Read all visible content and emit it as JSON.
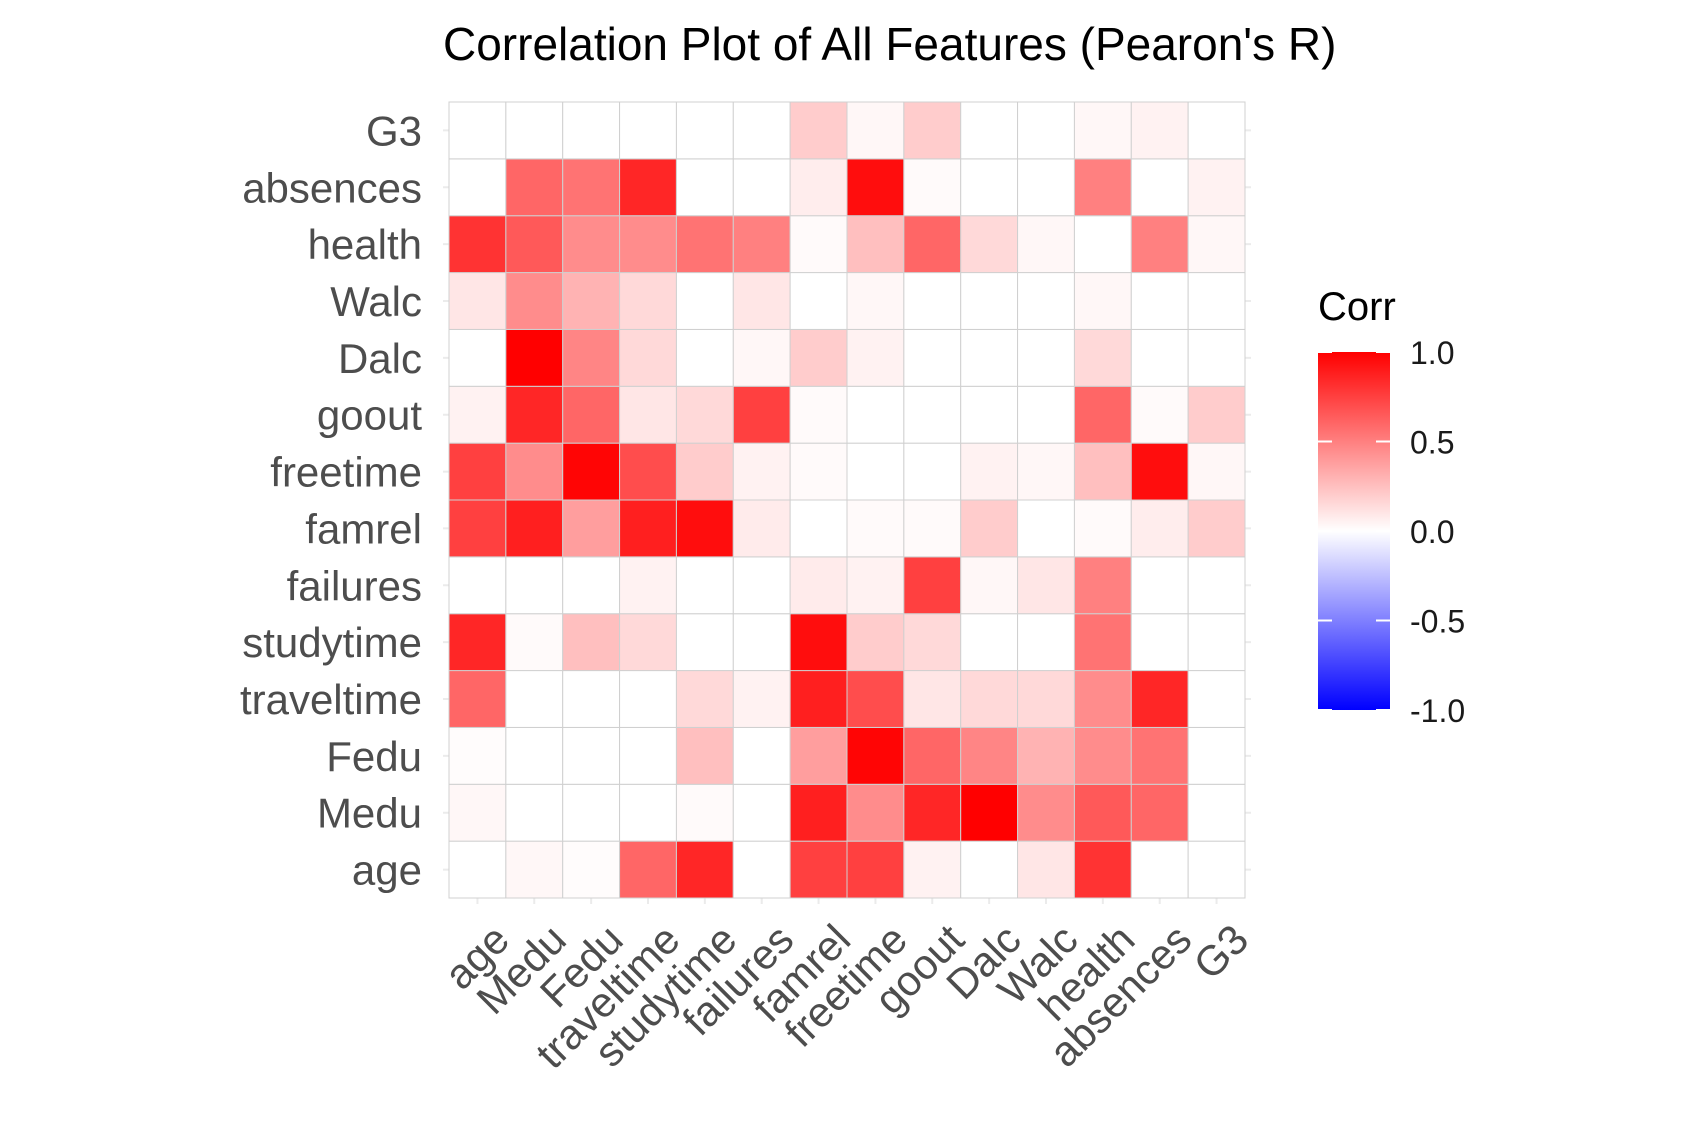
{
  "chart_data": {
    "type": "heatmap",
    "title": "Correlation Plot of All Features (Pearon's R)",
    "x_labels": [
      "age",
      "Medu",
      "Fedu",
      "traveltime",
      "studytime",
      "failures",
      "famrel",
      "freetime",
      "goout",
      "Dalc",
      "Walc",
      "health",
      "absences",
      "G3"
    ],
    "y_labels": [
      "age",
      "Medu",
      "Fedu",
      "traveltime",
      "studytime",
      "failures",
      "famrel",
      "freetime",
      "goout",
      "Dalc",
      "Walc",
      "health",
      "absences",
      "G3"
    ],
    "values": [
      [
        0.0,
        0.03,
        0.01,
        0.6,
        0.85,
        0.0,
        0.75,
        0.75,
        0.05,
        0.0,
        0.1,
        0.8,
        0.0,
        0.0
      ],
      [
        0.03,
        0.0,
        0.0,
        0.0,
        0.02,
        0.0,
        0.88,
        0.45,
        0.85,
        1.0,
        0.45,
        0.65,
        0.6,
        0.0
      ],
      [
        0.01,
        0.0,
        0.0,
        0.0,
        0.25,
        0.0,
        0.38,
        0.98,
        0.6,
        0.48,
        0.3,
        0.45,
        0.55,
        0.0
      ],
      [
        0.6,
        0.0,
        0.0,
        0.0,
        0.15,
        0.05,
        0.88,
        0.7,
        0.1,
        0.15,
        0.15,
        0.45,
        0.85,
        0.0
      ],
      [
        0.85,
        0.02,
        0.25,
        0.15,
        0.0,
        0.0,
        0.95,
        0.2,
        0.15,
        0.0,
        0.0,
        0.55,
        0.0,
        0.0
      ],
      [
        0.0,
        0.0,
        0.0,
        0.05,
        0.0,
        0.0,
        0.08,
        0.05,
        0.75,
        0.03,
        0.1,
        0.5,
        0.0,
        0.0
      ],
      [
        0.75,
        0.88,
        0.38,
        0.88,
        0.95,
        0.08,
        0.0,
        0.02,
        0.02,
        0.2,
        0.0,
        0.02,
        0.07,
        0.2
      ],
      [
        0.75,
        0.45,
        0.98,
        0.7,
        0.2,
        0.05,
        0.02,
        0.0,
        0.0,
        0.05,
        0.03,
        0.25,
        0.95,
        0.03
      ],
      [
        0.05,
        0.85,
        0.6,
        0.1,
        0.15,
        0.75,
        0.02,
        0.0,
        0.0,
        0.0,
        0.0,
        0.6,
        0.02,
        0.2
      ],
      [
        0.0,
        1.0,
        0.48,
        0.15,
        0.0,
        0.03,
        0.2,
        0.05,
        0.0,
        0.0,
        0.0,
        0.15,
        0.0,
        0.0
      ],
      [
        0.1,
        0.45,
        0.3,
        0.15,
        0.0,
        0.1,
        0.0,
        0.03,
        0.0,
        0.0,
        0.0,
        0.03,
        0.0,
        0.0
      ],
      [
        0.8,
        0.65,
        0.45,
        0.45,
        0.55,
        0.5,
        0.02,
        0.25,
        0.6,
        0.15,
        0.03,
        0.0,
        0.5,
        0.03
      ],
      [
        0.0,
        0.6,
        0.55,
        0.85,
        0.0,
        0.0,
        0.07,
        0.95,
        0.02,
        0.0,
        0.0,
        0.5,
        0.0,
        0.05
      ],
      [
        0.0,
        0.0,
        0.0,
        0.0,
        0.0,
        0.0,
        0.2,
        0.03,
        0.2,
        0.0,
        0.0,
        0.03,
        0.05,
        0.0
      ]
    ],
    "grid": true,
    "legend": {
      "title": "Corr",
      "placement": "right",
      "range": [
        -1.0,
        1.0
      ],
      "ticks": [
        1.0,
        0.5,
        0.0,
        -0.5,
        -1.0
      ],
      "tick_labels": [
        "1.0",
        "0.5",
        "0.0",
        "-0.5",
        "-1.0"
      ]
    },
    "colors": {
      "low": "#0000ff",
      "mid": "#ffffff",
      "high": "#ff0000",
      "cell_border": "#d0d0d0",
      "grid": "#ebebeb"
    }
  }
}
